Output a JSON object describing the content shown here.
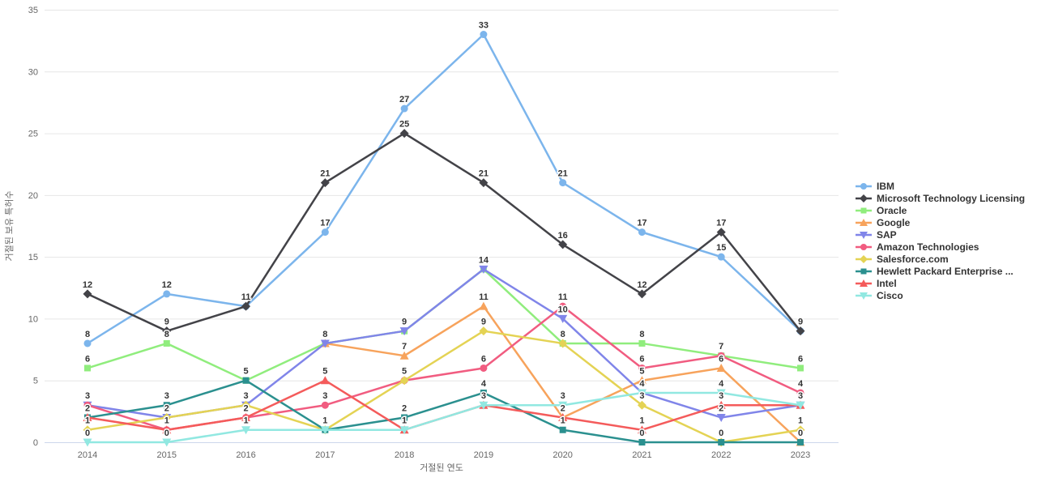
{
  "chart": {
    "y_axis_title": "거절된 보유 특허수",
    "x_axis_title": "거절된 연도",
    "y_ticks": [
      0,
      5,
      10,
      15,
      20,
      25,
      30,
      35
    ],
    "background_color": "#ffffff",
    "grid_color": "#e6e6e6",
    "axis_line_color": "#ccd6eb",
    "tick_label_color": "#666666",
    "data_label_color": "#333333",
    "legend_text_color": "#333333"
  },
  "chart_data": {
    "type": "line",
    "title": "",
    "xlabel": "거절된 연도",
    "ylabel": "거절된 보유 특허수",
    "ylim": [
      0,
      35
    ],
    "grid": true,
    "legend_position": "right",
    "categories": [
      "2014",
      "2015",
      "2016",
      "2017",
      "2018",
      "2019",
      "2020",
      "2021",
      "2022",
      "2023"
    ],
    "series": [
      {
        "name": "IBM",
        "color": "#7cb5ec",
        "marker": "circle",
        "values": [
          8,
          12,
          11,
          17,
          27,
          33,
          21,
          17,
          15,
          9
        ]
      },
      {
        "name": "Microsoft Technology Licensing",
        "color": "#434348",
        "marker": "diamond",
        "values": [
          12,
          9,
          11,
          21,
          25,
          21,
          16,
          12,
          17,
          9
        ]
      },
      {
        "name": "Oracle",
        "color": "#90ed7d",
        "marker": "square",
        "values": [
          6,
          8,
          5,
          8,
          9,
          14,
          8,
          8,
          7,
          6
        ]
      },
      {
        "name": "Google",
        "color": "#f7a35c",
        "marker": "triangle",
        "values": [
          null,
          null,
          null,
          8,
          7,
          11,
          2,
          5,
          6,
          0
        ]
      },
      {
        "name": "SAP",
        "color": "#8085e9",
        "marker": "triangle-down",
        "values": [
          3,
          2,
          3,
          8,
          9,
          14,
          10,
          4,
          2,
          3
        ]
      },
      {
        "name": "Amazon Technologies",
        "color": "#f15c80",
        "marker": "circle",
        "values": [
          3,
          1,
          2,
          3,
          5,
          6,
          11,
          6,
          7,
          4
        ]
      },
      {
        "name": "Salesforce.com",
        "color": "#e4d354",
        "marker": "diamond",
        "values": [
          1,
          2,
          3,
          1,
          5,
          9,
          8,
          3,
          0,
          1
        ]
      },
      {
        "name": "Hewlett Packard Enterprise ...",
        "color": "#2b908f",
        "marker": "square",
        "values": [
          2,
          3,
          5,
          1,
          2,
          4,
          1,
          0,
          0,
          0
        ]
      },
      {
        "name": "Intel",
        "color": "#f45b5b",
        "marker": "triangle",
        "values": [
          2,
          1,
          2,
          5,
          1,
          3,
          2,
          1,
          3,
          3
        ]
      },
      {
        "name": "Cisco",
        "color": "#91e8e1",
        "marker": "triangle-down",
        "values": [
          0,
          0,
          1,
          1,
          1,
          3,
          3,
          4,
          4,
          3
        ]
      }
    ]
  }
}
